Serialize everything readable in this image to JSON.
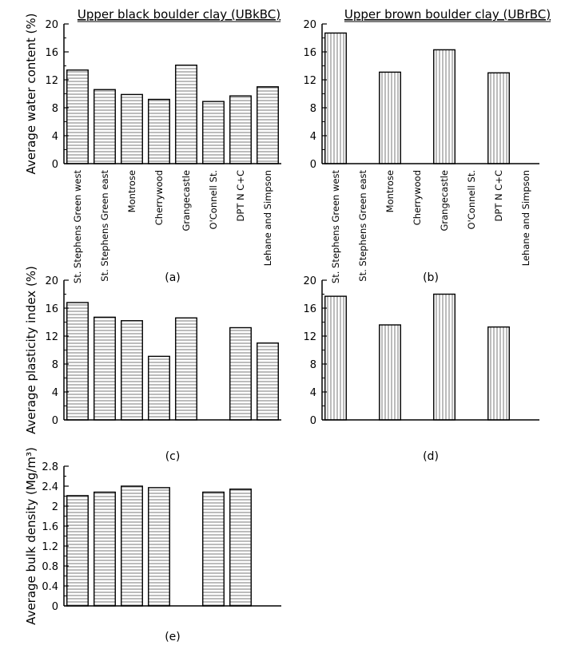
{
  "categories": [
    "St. Stephens Green west",
    "St. Stephens Green east",
    "Montrose",
    "Cherrywood",
    "Grangecastle",
    "O'Connell St.",
    "DPT N C+C",
    "Lehane and Simpson"
  ],
  "chart_data": [
    {
      "id": "a",
      "type": "bar",
      "title": "Upper black boulder clay (UBkBC)",
      "caption": "(a)",
      "ylabel": "Average water content (%)",
      "ylim": [
        0,
        20
      ],
      "yticks": [
        "0",
        "4",
        "8",
        "12",
        "16",
        "20"
      ],
      "show_xticklabels": true,
      "hatch": "horizontal",
      "values": [
        13.4,
        10.6,
        9.9,
        9.2,
        14.1,
        8.9,
        9.7,
        11.0
      ]
    },
    {
      "id": "b",
      "type": "bar",
      "title": "Upper brown boulder clay (UBrBC)",
      "caption": "(b)",
      "ylabel": "",
      "ylim": [
        0,
        20
      ],
      "yticks": [
        "0",
        "4",
        "8",
        "12",
        "16",
        "20"
      ],
      "show_xticklabels": true,
      "hatch": "vertical",
      "values": [
        18.7,
        null,
        13.1,
        null,
        16.3,
        null,
        13.0,
        null
      ]
    },
    {
      "id": "c",
      "type": "bar",
      "title": "",
      "caption": "(c)",
      "ylabel": "Average plasticity index (%)",
      "ylim": [
        0,
        20
      ],
      "yticks": [
        "0",
        "4",
        "8",
        "12",
        "16",
        "20"
      ],
      "show_xticklabels": false,
      "hatch": "horizontal",
      "values": [
        16.8,
        14.7,
        14.2,
        9.1,
        14.6,
        null,
        13.2,
        11.0
      ]
    },
    {
      "id": "d",
      "type": "bar",
      "title": "",
      "caption": "(d)",
      "ylabel": "",
      "ylim": [
        0,
        20
      ],
      "yticks": [
        "0",
        "4",
        "8",
        "12",
        "16",
        "20"
      ],
      "show_xticklabels": false,
      "hatch": "vertical",
      "values": [
        17.7,
        null,
        13.6,
        null,
        18.0,
        null,
        13.3,
        null
      ]
    },
    {
      "id": "e",
      "type": "bar",
      "title": "",
      "caption": "(e)",
      "ylabel": "Average bulk density (Mg/m³)",
      "ylim": [
        0,
        2.8
      ],
      "yticks": [
        "0",
        "0.4",
        "0.8",
        "1.2",
        "1.6",
        "2",
        "2.4",
        "2.8"
      ],
      "show_xticklabels": false,
      "hatch": "horizontal",
      "values": [
        2.21,
        2.28,
        2.4,
        2.37,
        null,
        2.28,
        2.34,
        null
      ]
    }
  ]
}
